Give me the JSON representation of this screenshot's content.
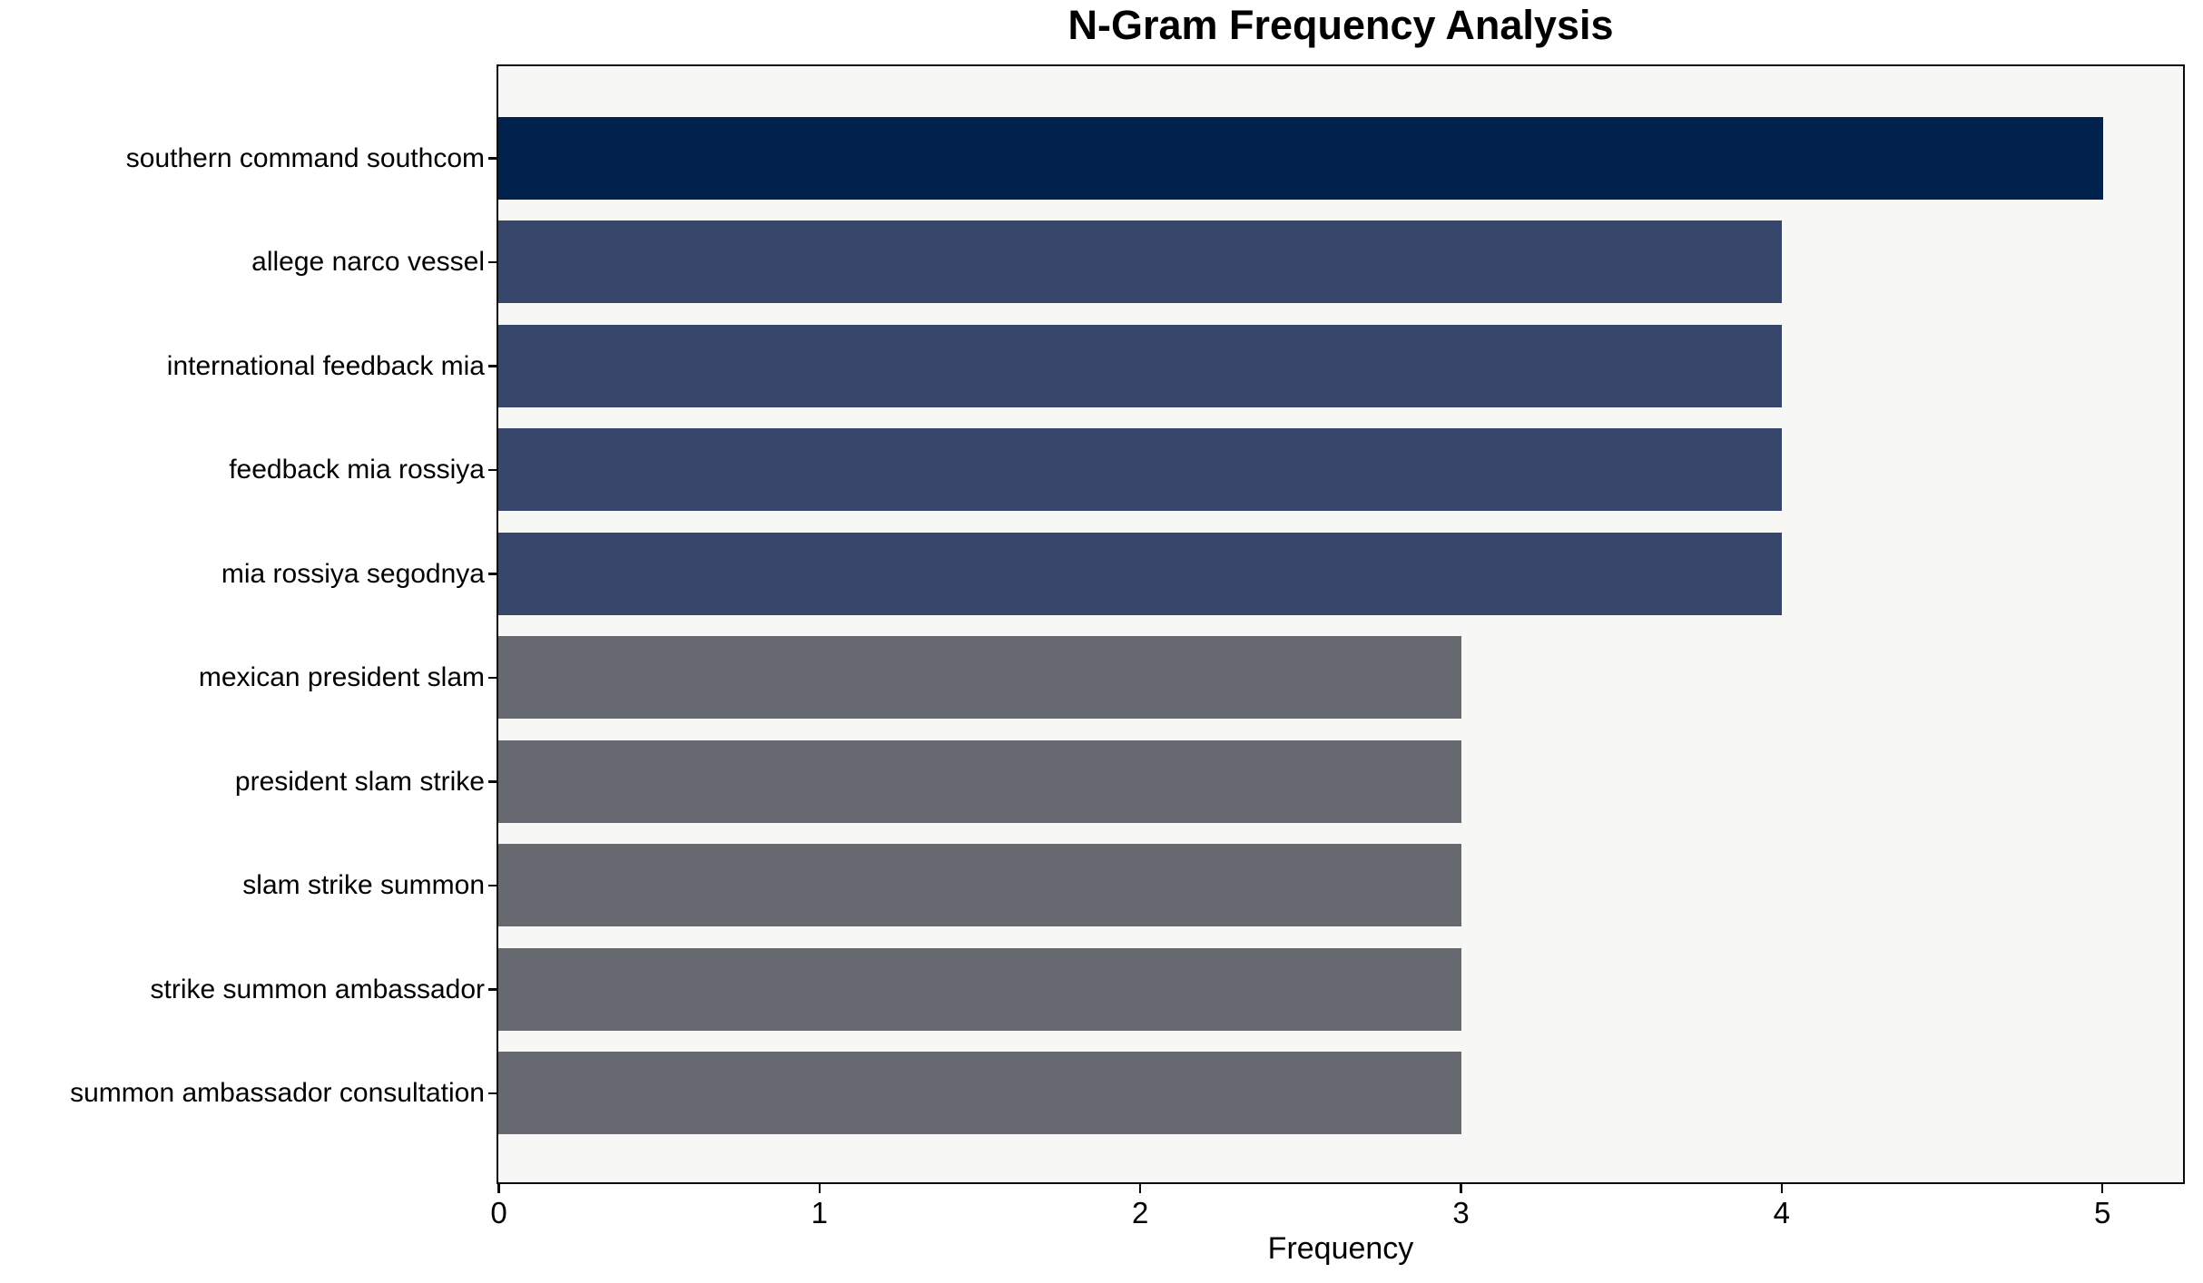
{
  "chart_data": {
    "type": "bar",
    "orientation": "horizontal",
    "title": "N-Gram Frequency Analysis",
    "xlabel": "Frequency",
    "ylabel": "",
    "categories": [
      "southern command southcom",
      "allege narco vessel",
      "international feedback mia",
      "feedback mia rossiya",
      "mia rossiya segodnya",
      "mexican president slam",
      "president slam strike",
      "slam strike summon",
      "strike summon ambassador",
      "summon ambassador consultation"
    ],
    "values": [
      5,
      4,
      4,
      4,
      4,
      3,
      3,
      3,
      3,
      3
    ],
    "bar_colors": [
      "#02224e",
      "#37476b",
      "#37476b",
      "#37476b",
      "#37476b",
      "#666970",
      "#666970",
      "#666970",
      "#666970",
      "#666970"
    ],
    "xticks": [
      0,
      1,
      2,
      3,
      4,
      5
    ],
    "xlim": [
      0,
      5.25
    ],
    "grid": false,
    "legend": null,
    "plot_background": "#f7f7f6",
    "figure_background": "#ffffff"
  }
}
